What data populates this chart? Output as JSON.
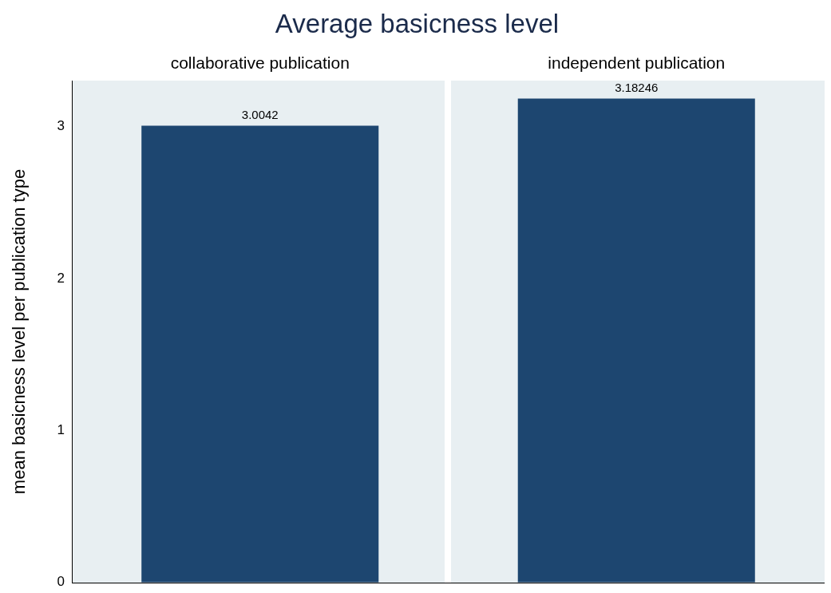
{
  "chart_data": {
    "type": "bar",
    "title": "Average basicness level",
    "ylabel": "mean basicness level per publication type",
    "categories": [
      "collaborative publication",
      "independent publication"
    ],
    "values": [
      3.0042,
      3.18246
    ],
    "color": "#1d4670",
    "ylim": [
      0,
      3.3
    ],
    "yticks": [
      0,
      1,
      2,
      3
    ],
    "data_labels": true
  }
}
